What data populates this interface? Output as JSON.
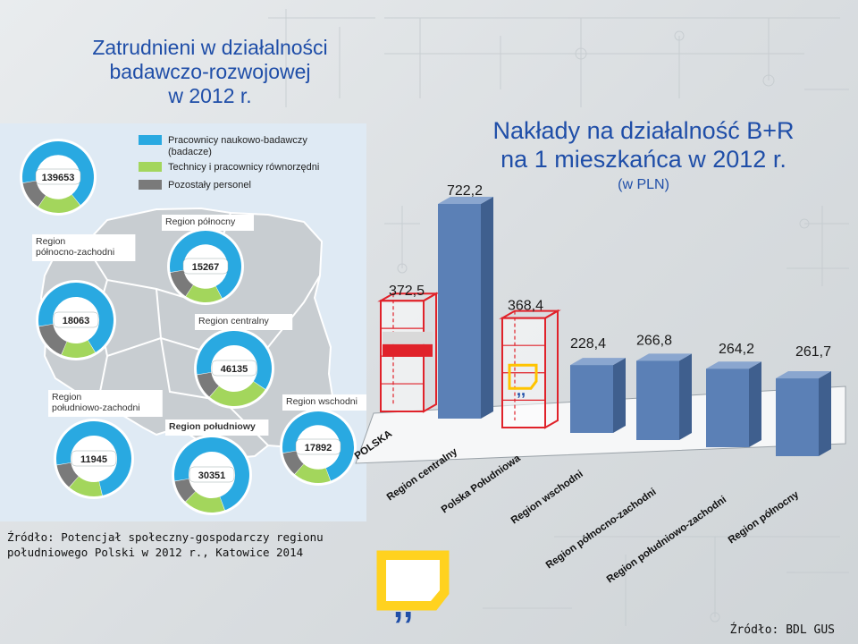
{
  "left_title": {
    "line1": "Zatrudnieni w działalności",
    "line2": "badawczo-rozwojowej",
    "line3": "w 2012 r."
  },
  "legend": {
    "items": [
      {
        "label_line1": "Pracownicy naukowo-badawczy",
        "label_line2": "(badacze)",
        "color": "#29a9e1"
      },
      {
        "label_line1": "Technicy i pracownicy równorzędni",
        "label_line2": "",
        "color": "#a3d65c"
      },
      {
        "label_line1": "Pozostały personel",
        "label_line2": "",
        "color": "#7a7a7a"
      }
    ]
  },
  "map_regions": [
    {
      "name_lines": [
        "POLSKA"
      ],
      "name_visible": false,
      "total": "139653",
      "shares": [
        0.67,
        0.2,
        0.13
      ]
    },
    {
      "name_lines": [
        "Region północny"
      ],
      "name_visible": true,
      "total": "15267",
      "shares": [
        0.7,
        0.17,
        0.13
      ]
    },
    {
      "name_lines": [
        "Region",
        "północno-zachodni"
      ],
      "name_visible": true,
      "total": "18063",
      "shares": [
        0.69,
        0.15,
        0.16
      ]
    },
    {
      "name_lines": [
        "Region centralny"
      ],
      "name_visible": true,
      "total": "46135",
      "shares": [
        0.62,
        0.27,
        0.11
      ]
    },
    {
      "name_lines": [
        "Region",
        "południowo-zachodni"
      ],
      "name_visible": true,
      "total": "11945",
      "shares": [
        0.74,
        0.15,
        0.11
      ]
    },
    {
      "name_lines": [
        "Region południowy"
      ],
      "name_visible": true,
      "total": "30351",
      "shares": [
        0.72,
        0.18,
        0.1
      ]
    },
    {
      "name_lines": [
        "Region wschodni"
      ],
      "name_visible": true,
      "total": "17892",
      "shares": [
        0.72,
        0.17,
        0.11
      ]
    }
  ],
  "right_title": {
    "line1": "Nakłady na działalność B+R",
    "line2": "na 1 mieszkańca w 2012 r.",
    "line3": "(w PLN)"
  },
  "chart_data": {
    "type": "bar",
    "title": "Nakłady na działalność B+R na 1 mieszkańca w 2012 r.",
    "subtitle": "(w PLN)",
    "categories": [
      "POLSKA",
      "Region centralny",
      "Polska Południowa",
      "Region wschodni",
      "Region północno-zachodni",
      "Region południowo-zachodni",
      "Region północny"
    ],
    "values": [
      372.5,
      722.2,
      368.4,
      228.4,
      266.8,
      264.2,
      261.7
    ],
    "value_labels": [
      "372,5",
      "722,2",
      "368,4",
      "228,4",
      "266,8",
      "264,2",
      "261,7"
    ],
    "colors": {
      "bar": "#5b80b6",
      "outlined": "#e0222a"
    },
    "outlined_bars": [
      "POLSKA",
      "Polska Południowa"
    ],
    "ylim": [
      0,
      800
    ],
    "grid": false
  },
  "sources": {
    "left_line1": "Źródło: Potencjał społeczny-gospodarczy regionu",
    "left_line2": "południowego Polski w 2012 r., Katowice 2014",
    "right": "Źródło: BDL GUS"
  }
}
